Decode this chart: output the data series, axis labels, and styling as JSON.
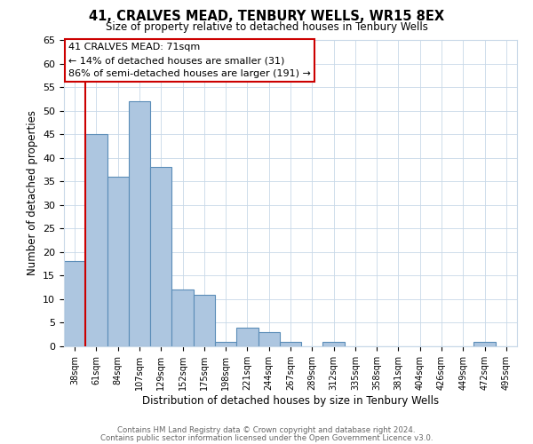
{
  "title": "41, CRALVES MEAD, TENBURY WELLS, WR15 8EX",
  "subtitle": "Size of property relative to detached houses in Tenbury Wells",
  "xlabel": "Distribution of detached houses by size in Tenbury Wells",
  "ylabel": "Number of detached properties",
  "bar_labels": [
    "38sqm",
    "61sqm",
    "84sqm",
    "107sqm",
    "129sqm",
    "152sqm",
    "175sqm",
    "198sqm",
    "221sqm",
    "244sqm",
    "267sqm",
    "289sqm",
    "312sqm",
    "335sqm",
    "358sqm",
    "381sqm",
    "404sqm",
    "426sqm",
    "449sqm",
    "472sqm",
    "495sqm"
  ],
  "bar_values": [
    18,
    45,
    36,
    52,
    38,
    12,
    11,
    1,
    4,
    3,
    1,
    0,
    1,
    0,
    0,
    0,
    0,
    0,
    0,
    1,
    0
  ],
  "bar_color": "#adc6e0",
  "bar_edge_color": "#5b8db8",
  "ylim": [
    0,
    65
  ],
  "yticks": [
    0,
    5,
    10,
    15,
    20,
    25,
    30,
    35,
    40,
    45,
    50,
    55,
    60,
    65
  ],
  "vline_color": "#cc0000",
  "annotation_text": "41 CRALVES MEAD: 71sqm\n← 14% of detached houses are smaller (31)\n86% of semi-detached houses are larger (191) →",
  "annotation_box_color": "#ffffff",
  "annotation_border_color": "#cc0000",
  "footer_line1": "Contains HM Land Registry data © Crown copyright and database right 2024.",
  "footer_line2": "Contains public sector information licensed under the Open Government Licence v3.0.",
  "background_color": "#ffffff",
  "grid_color": "#c8d8e8"
}
